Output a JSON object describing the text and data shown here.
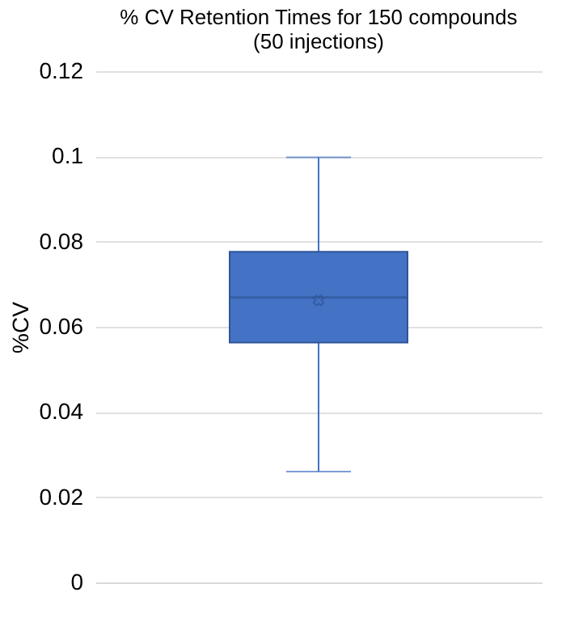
{
  "chart_data": {
    "type": "box",
    "title": [
      "% CV Retention Times for 150 compounds",
      "(50 injections)"
    ],
    "ylabel": "%CV",
    "categories": [
      null
    ],
    "boxes": [
      {
        "low": 0.026,
        "q1": 0.0563,
        "median": 0.0669,
        "q3": 0.0776,
        "high": 0.0998,
        "mean": 0.0662
      }
    ],
    "color": "#4472c4",
    "ylim": [
      0,
      0.12
    ],
    "yticks": [
      0,
      0.02,
      0.04,
      0.06,
      0.08,
      0.1,
      0.12
    ],
    "grid": "y",
    "marker": "cross"
  }
}
